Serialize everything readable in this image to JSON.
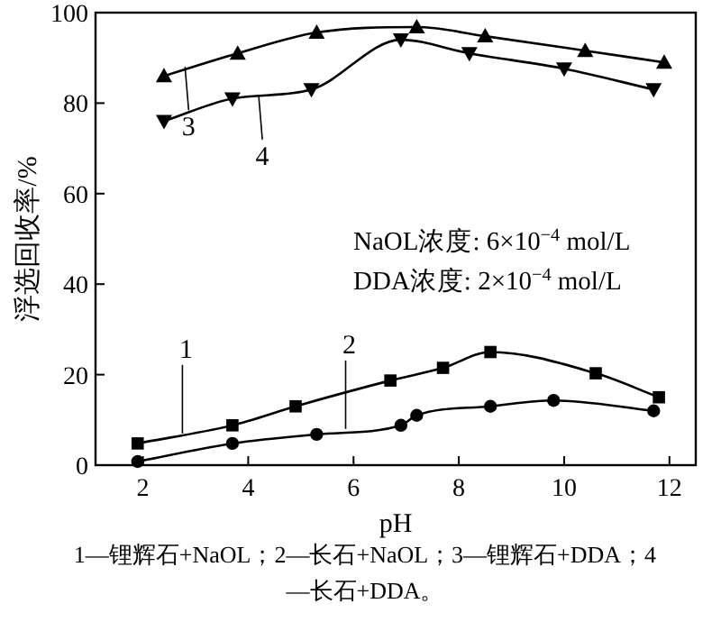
{
  "chart_data": {
    "type": "line",
    "xlabel": "pH",
    "ylabel": "浮选回收率/%",
    "xlim": [
      1.1,
      12.5
    ],
    "xticks": [
      2,
      4,
      6,
      8,
      10,
      12
    ],
    "ylim": [
      0,
      100
    ],
    "yticks": [
      0,
      20,
      40,
      60,
      80,
      100
    ],
    "grid": false,
    "series": [
      {
        "color": "#000000",
        "marker": "square",
        "x": [
          1.9,
          3.7,
          4.9,
          6.7,
          7.7,
          8.6,
          10.6,
          11.8
        ],
        "values": [
          4.8,
          8.8,
          13,
          18.7,
          21.5,
          25,
          20.3,
          15
        ]
      },
      {
        "color": "#000000",
        "marker": "circle",
        "x": [
          1.9,
          3.7,
          5.3,
          6.9,
          7.2,
          8.6,
          9.8,
          11.7
        ],
        "values": [
          0.8,
          4.8,
          6.8,
          8.8,
          11,
          13,
          14.3,
          12
        ]
      },
      {
        "color": "#000000",
        "marker": "triangle",
        "x": [
          2.4,
          3.8,
          5.3,
          7.2,
          8.5,
          10.4,
          11.9
        ],
        "values": [
          86,
          91,
          95.6,
          96.8,
          94.8,
          91.6,
          89
        ]
      },
      {
        "color": "#000000",
        "marker": "triangle-down",
        "x": [
          2.4,
          3.7,
          5.2,
          6.9,
          8.2,
          10,
          11.7
        ],
        "values": [
          76,
          81,
          83,
          94,
          91,
          87.6,
          83
        ]
      }
    ],
    "annotations": [
      {
        "text": "1",
        "x": 2.75,
        "y": 7
      },
      {
        "text": "2",
        "x": 5.85,
        "y": 8
      },
      {
        "text": "3",
        "x": 2.8,
        "y": 88
      },
      {
        "text": "4",
        "x": 4.2,
        "y": 81.5
      },
      "NaOL浓度: 6×10$^{−4}$ mol/L",
      "DDA浓度: 2×10$^{−4}$ mol/L",
      "1—锂辉石+NaOL；2—长石+NaOL；3—锂辉石+DDA；4—长石+DDA。"
    ]
  }
}
